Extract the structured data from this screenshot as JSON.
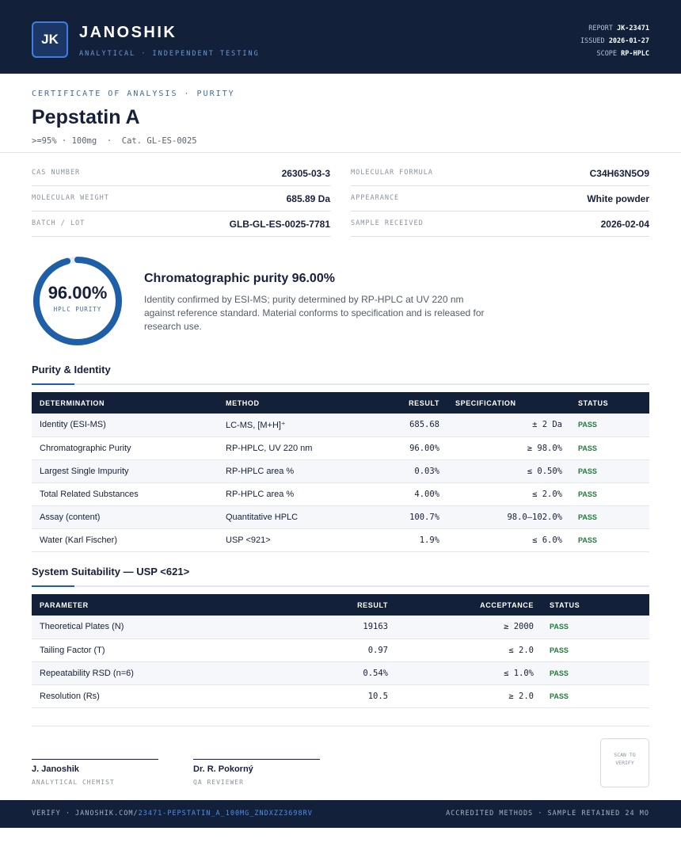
{
  "header": {
    "logo": "JK",
    "brand": "JANOSHIK",
    "tagline": "ANALYTICAL · INDEPENDENT TESTING",
    "meta": [
      {
        "label": "REPORT",
        "value": "JK-23471"
      },
      {
        "label": "ISSUED",
        "value": "2026-01-27"
      },
      {
        "label": "SCOPE",
        "value": "RP-HPLC"
      }
    ]
  },
  "product": {
    "eyebrow": "CERTIFICATE OF ANALYSIS · PURITY",
    "name": "Pepstatin A",
    "subline": ">=95% · 100mg  ·  Cat. GL-ES-0025"
  },
  "info": [
    {
      "label": "CAS NUMBER",
      "value": "26305-03-3"
    },
    {
      "label": "MOLECULAR FORMULA",
      "value": "C34H63N5O9"
    },
    {
      "label": "MOLECULAR WEIGHT",
      "value": "685.89 Da"
    },
    {
      "label": "APPEARANCE",
      "value": "White powder"
    },
    {
      "label": "BATCH / LOT",
      "value": "GLB-GL-ES-0025-7781"
    },
    {
      "label": "SAMPLE RECEIVED",
      "value": "2026-02-04"
    }
  ],
  "summary": {
    "gauge": {
      "value": 96,
      "label": "96.00%",
      "caption": "HPLC PURITY"
    },
    "heading": "Chromatographic purity 96.00%",
    "text": "Identity confirmed by ESI-MS; purity determined by RP-HPLC at UV 220 nm against reference standard. Material conforms to specification and is released for research use."
  },
  "purity_table": {
    "title": "Purity & Identity",
    "columns": [
      "DETERMINATION",
      "METHOD",
      "RESULT",
      "SPECIFICATION",
      "STATUS"
    ],
    "rows": [
      [
        "Identity (ESI-MS)",
        "LC-MS, [M+H]⁺",
        "685.68",
        "± 2 Da",
        "PASS"
      ],
      [
        "Chromatographic Purity",
        "RP-HPLC, UV 220 nm",
        "96.00%",
        "≥ 98.0%",
        "PASS"
      ],
      [
        "Largest Single Impurity",
        "RP-HPLC area %",
        "0.03%",
        "≤ 0.50%",
        "PASS"
      ],
      [
        "Total Related Substances",
        "RP-HPLC area %",
        "4.00%",
        "≤ 2.0%",
        "PASS"
      ],
      [
        "Assay (content)",
        "Quantitative HPLC",
        "100.7%",
        "98.0–102.0%",
        "PASS"
      ],
      [
        "Water (Karl Fischer)",
        "USP <921>",
        "1.9%",
        "≤ 6.0%",
        "PASS"
      ]
    ]
  },
  "suitability_table": {
    "title": "System Suitability — USP <621>",
    "columns": [
      "PARAMETER",
      "RESULT",
      "ACCEPTANCE",
      "STATUS"
    ],
    "rows": [
      [
        "Theoretical Plates (N)",
        "19163",
        "≥ 2000",
        "PASS"
      ],
      [
        "Tailing Factor (T)",
        "0.97",
        "≤ 2.0",
        "PASS"
      ],
      [
        "Repeatability RSD (n=6)",
        "0.54%",
        "≤ 1.0%",
        "PASS"
      ],
      [
        "Resolution (Rs)",
        "10.5",
        "≥ 2.0",
        "PASS"
      ]
    ]
  },
  "signatures": [
    {
      "name": "J. Janoshik",
      "role": "ANALYTICAL CHEMIST"
    },
    {
      "name": "Dr. R. Pokorný",
      "role": "QA REVIEWER"
    }
  ],
  "qr": "SCAN TO VERIFY",
  "footer": {
    "verify_prefix": "VERIFY · JANOSHIK.COM/",
    "verify_link": "23471-PEPSTATIN_A_100MG_ZNDXZZ3698RV",
    "right": "ACCREDITED METHODS · SAMPLE RETAINED 24 MO"
  }
}
